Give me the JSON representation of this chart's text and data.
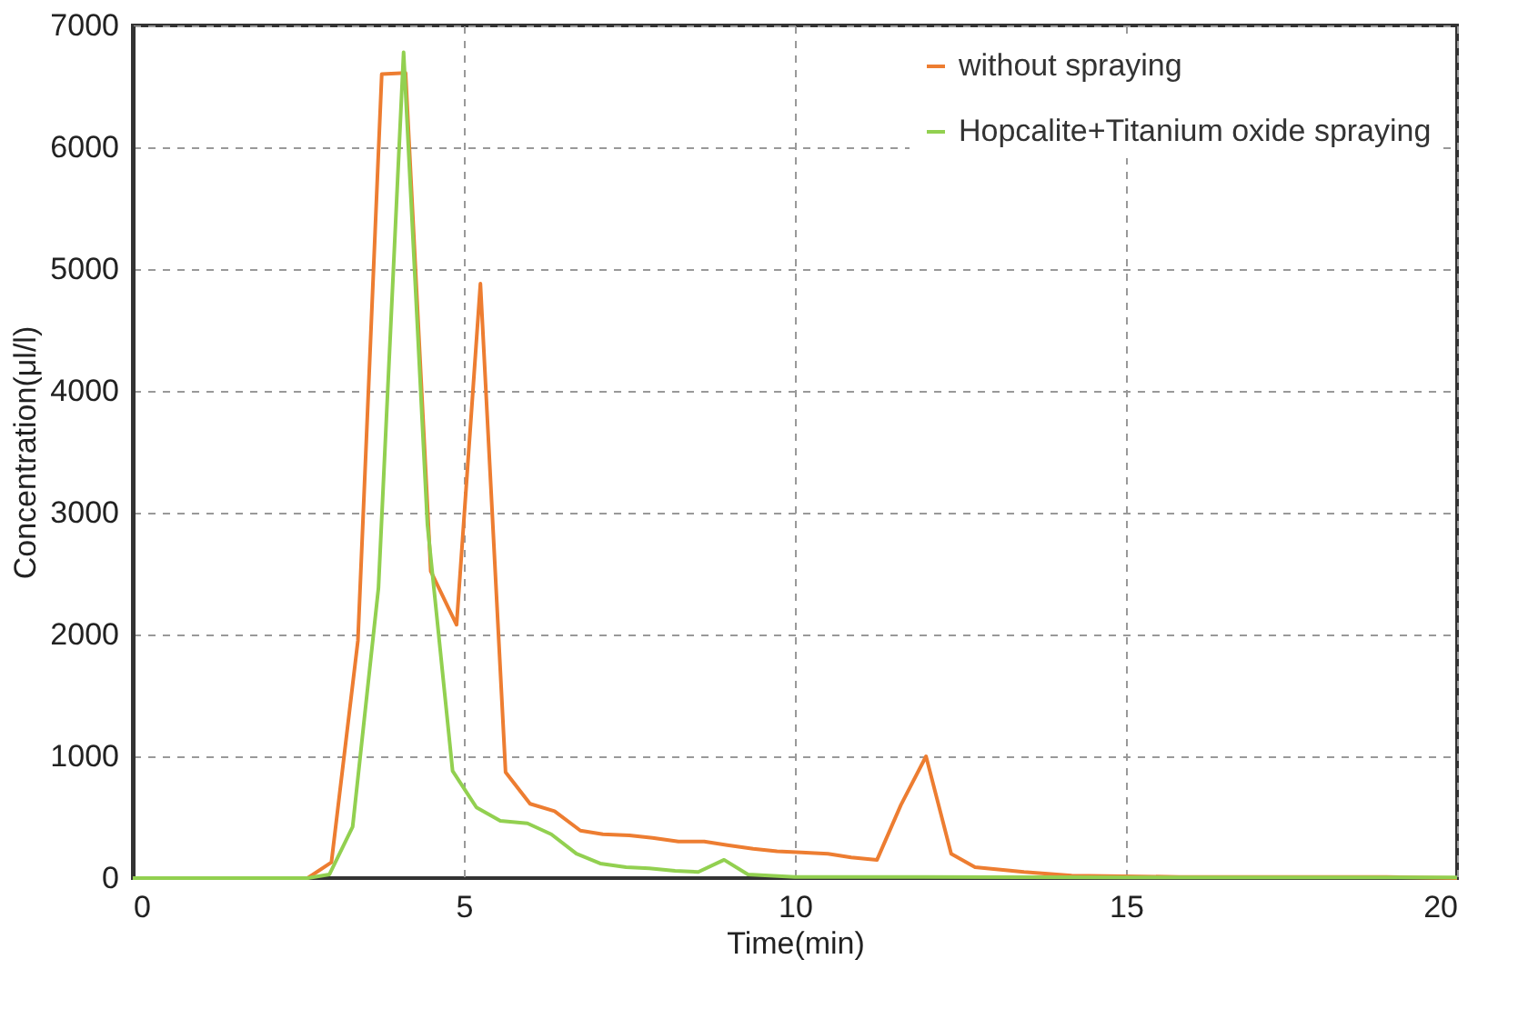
{
  "chart_data": {
    "type": "line",
    "xlabel": "Time(min)",
    "ylabel": "Concentration(μl/l)",
    "xlim": [
      0,
      20
    ],
    "xticks": [
      0,
      5,
      10,
      15,
      20
    ],
    "ylim": [
      0,
      7000
    ],
    "yticks": [
      0,
      1000,
      2000,
      3000,
      4000,
      5000,
      6000,
      7000
    ],
    "grid": true,
    "legend": "top right",
    "marker": "none",
    "line_style": "solid",
    "series": [
      {
        "name": "without spraying",
        "color": "#ed7d31",
        "x": [
          2.64,
          3.0,
          3.4,
          3.76,
          4.12,
          4.5,
          4.89,
          5.25,
          5.63,
          6.0,
          6.37,
          6.76,
          7.1,
          7.5,
          7.85,
          8.24,
          8.63,
          8.98,
          9.37,
          9.73,
          10.1,
          10.5,
          10.85,
          11.24,
          11.6,
          11.98,
          12.36,
          12.72,
          13.46,
          14.18,
          15.8,
          18.8,
          20
        ],
        "values": [
          0,
          130,
          1950,
          6600,
          6610,
          2520,
          2080,
          4880,
          870,
          610,
          550,
          390,
          360,
          350,
          330,
          300,
          300,
          270,
          240,
          220,
          210,
          200,
          170,
          150,
          600,
          1000,
          200,
          90,
          50,
          20,
          10,
          10,
          0
        ]
      },
      {
        "name": "Hopcalite+Titanium oxide spraying",
        "color": "#92d050",
        "x": [
          0,
          1,
          2,
          2.64,
          2.97,
          3.32,
          3.71,
          4.09,
          4.45,
          4.83,
          5.19,
          5.55,
          5.96,
          6.32,
          6.7,
          7.06,
          7.45,
          7.8,
          8.19,
          8.54,
          8.93,
          9.29,
          10,
          11,
          15,
          20
        ],
        "values": [
          0,
          0,
          0,
          0,
          30,
          420,
          2380,
          6780,
          2900,
          880,
          580,
          470,
          450,
          360,
          200,
          120,
          90,
          80,
          60,
          50,
          150,
          30,
          10,
          10,
          5,
          5
        ]
      }
    ]
  }
}
